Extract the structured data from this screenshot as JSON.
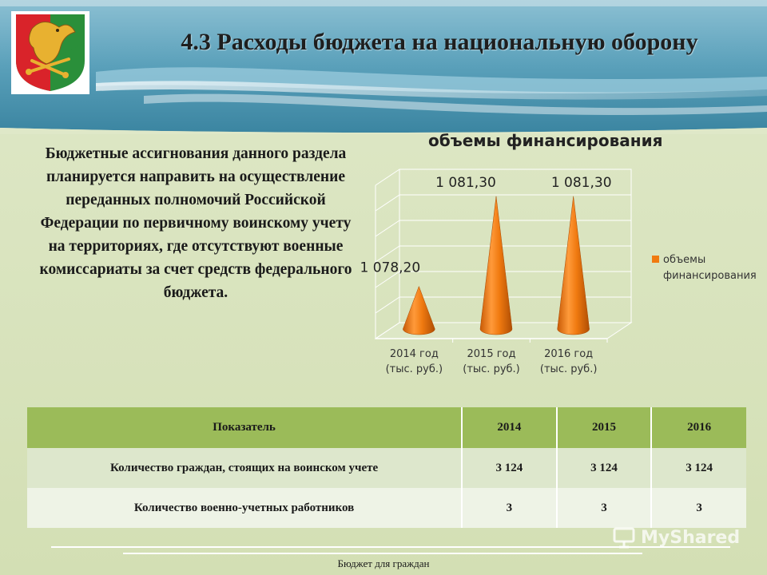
{
  "header": {
    "title": "4.3 Расходы бюджета на национальную оборону"
  },
  "description": "Бюджетные ассигнования данного раздела планируется направить на осуществление переданных полномочий Российской Федерации по первичному воинскому учету на территориях, где отсутствуют военные комиссариаты за счет средств федерального бюджета.",
  "chart_data": {
    "type": "bar",
    "style": "3d-cone",
    "title": "объемы финансирования",
    "categories": [
      "2014 год (тыс. руб.)",
      "2015 год (тыс. руб.)",
      "2016 год (тыс. руб.)"
    ],
    "category_lines": [
      [
        "2014 год",
        "(тыс. руб.)"
      ],
      [
        "2015 год",
        "(тыс. руб.)"
      ],
      [
        "2016 год",
        "(тыс. руб.)"
      ]
    ],
    "series": [
      {
        "name": "объемы финансирования",
        "values": [
          1078.2,
          1081.3,
          1081.3
        ]
      }
    ],
    "value_labels": [
      "1 078,20",
      "1 081,30",
      "1 081,30"
    ],
    "legend": {
      "placement": "right",
      "label_lines": [
        "объемы",
        "финансирования"
      ]
    },
    "grid": true,
    "ylim": [
      1076.4,
      1081.9
    ],
    "color": "#f07a10"
  },
  "table": {
    "headers": [
      "Показатель",
      "2014",
      "2015",
      "2016"
    ],
    "rows": [
      [
        "Количество граждан, стоящих на воинском учете",
        "3 124",
        "3 124",
        "3 124"
      ],
      [
        "Количество военно-учетных работников",
        "3",
        "3",
        "3"
      ]
    ]
  },
  "footer": {
    "text": "Бюджет для граждан"
  },
  "watermark": {
    "text": "MyShared"
  },
  "colors": {
    "header_blue": "#4b93ad",
    "table_header": "#9bbb59",
    "cone": "#f07a10"
  }
}
